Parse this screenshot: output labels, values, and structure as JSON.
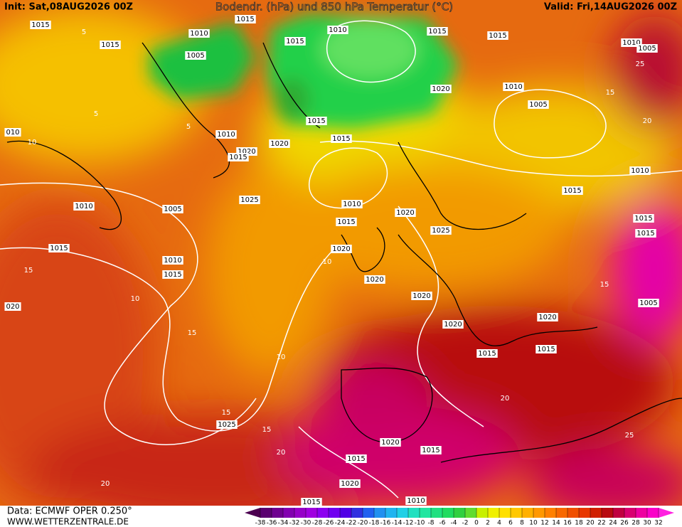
{
  "header": {
    "init": "Init: Sat,08AUG2026 00Z",
    "title": "Bodendr. (hPa) und 850 hPa Temperatur (°C)",
    "valid": "Valid: Fri,14AUG2026 00Z"
  },
  "footer": {
    "source": "Data: ECMWF OPER 0.250°",
    "website": "WWW.WETTERZENTRALE.DE"
  },
  "colorbar": {
    "ticks": [
      -38,
      -36,
      -34,
      -32,
      -30,
      -28,
      -26,
      -24,
      -22,
      -20,
      -18,
      -16,
      -14,
      -12,
      -10,
      -8,
      -6,
      -4,
      -2,
      0,
      2,
      4,
      6,
      8,
      10,
      12,
      14,
      16,
      18,
      20,
      22,
      24,
      26,
      28,
      30,
      32
    ],
    "colors": [
      "#4b0050",
      "#5a0070",
      "#6e0090",
      "#8200b0",
      "#9600c8",
      "#a000e0",
      "#8c00f0",
      "#7000f0",
      "#5000e6",
      "#3030e0",
      "#2060f0",
      "#2090f0",
      "#20b4f0",
      "#20d0e6",
      "#20e0c0",
      "#20e6a0",
      "#20e080",
      "#20dc60",
      "#30d040",
      "#60dc30",
      "#c8f000",
      "#f0f000",
      "#ffe000",
      "#ffc800",
      "#ffb000",
      "#ff9800",
      "#ff8000",
      "#f86800",
      "#f05000",
      "#e83800",
      "#d02000",
      "#b80a10",
      "#c00040",
      "#d80070",
      "#ee00a0",
      "#fa00c8",
      "#ff20e0"
    ]
  },
  "isobar_labels": [
    "1015",
    "1015",
    "1010",
    "1010",
    "1015",
    "1015",
    "1010",
    "1005",
    "1015",
    "1015",
    "1005",
    "1020",
    "1010",
    "1005",
    "1015",
    "1010",
    "1015",
    "1020",
    "1020",
    "1015",
    "1010",
    "1015",
    "1025",
    "1010",
    "1020",
    "1010",
    "1005",
    "1015",
    "1025",
    "1015",
    "1015",
    "1015",
    "1020",
    "1010",
    "1015",
    "1020",
    "1020",
    "020",
    "1005",
    "1020",
    "1020",
    "1015",
    "1015",
    "1025",
    "1020",
    "1015",
    "1015",
    "1020",
    "1015",
    "1010",
    "010"
  ],
  "temperature_labels": [
    "5",
    "5",
    "10",
    "5",
    "10",
    "15",
    "15",
    "10",
    "15",
    "20",
    "10",
    "15",
    "20",
    "25",
    "20",
    "25",
    "20",
    "15",
    "15"
  ]
}
